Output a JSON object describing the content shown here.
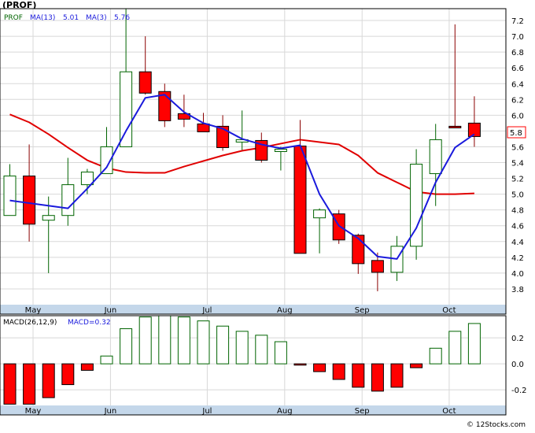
{
  "ticker": "(PROF)",
  "legend": {
    "symbol": "PROF",
    "ma13_label": "MA(13)",
    "ma13_value": "5.01",
    "ma3_label": "MA(3)",
    "ma3_value": "5.76"
  },
  "macd_legend": {
    "params": "MACD(26,12,9)",
    "value_label": "MACD=0.32"
  },
  "price_tag": "5.8",
  "footer": "© 12Stocks.com",
  "colors": {
    "up_candle_fill": "#ffffff",
    "up_candle_stroke": "#006400",
    "down_candle_fill": "#ff0000",
    "down_candle_stroke": "#000000",
    "ma13": "#e00000",
    "ma3": "#1a1adc",
    "macd_pos_stroke": "#006400",
    "macd_neg_fill": "#ff0000",
    "axis_band": "#c4d7ea",
    "grid": "#d8d8d8"
  },
  "chart_data": [
    {
      "type": "candlestick",
      "y_ticks": [
        3.8,
        4.0,
        4.2,
        4.4,
        4.6,
        4.8,
        5.0,
        5.2,
        5.4,
        5.6,
        5.8,
        6.0,
        6.2,
        6.4,
        6.6,
        6.8,
        7.0,
        7.2
      ],
      "ylim": [
        3.6,
        7.35
      ],
      "x_labels": [
        "May",
        "Jun",
        "Jul",
        "Aug",
        "Sep",
        "Oct"
      ],
      "x_label_positions": [
        1.2,
        5.2,
        10.2,
        14.2,
        18.2,
        22.7
      ],
      "candles": [
        {
          "i": 0,
          "open": 4.73,
          "high": 5.38,
          "low": 4.73,
          "close": 5.23
        },
        {
          "i": 1,
          "open": 5.23,
          "high": 5.63,
          "low": 4.4,
          "close": 4.62
        },
        {
          "i": 2,
          "open": 4.67,
          "high": 4.97,
          "low": 4.0,
          "close": 4.73
        },
        {
          "i": 3,
          "open": 4.73,
          "high": 5.46,
          "low": 4.6,
          "close": 5.12
        },
        {
          "i": 4,
          "open": 5.12,
          "high": 5.32,
          "low": 5.0,
          "close": 5.28
        },
        {
          "i": 5,
          "open": 5.26,
          "high": 5.85,
          "low": 5.26,
          "close": 5.6
        },
        {
          "i": 6,
          "open": 5.6,
          "high": 7.35,
          "low": 5.6,
          "close": 6.55
        },
        {
          "i": 7,
          "open": 6.55,
          "high": 7.0,
          "low": 6.26,
          "close": 6.28
        },
        {
          "i": 8,
          "open": 6.3,
          "high": 6.4,
          "low": 5.85,
          "close": 5.93
        },
        {
          "i": 9,
          "open": 6.02,
          "high": 6.26,
          "low": 5.85,
          "close": 5.95
        },
        {
          "i": 10,
          "open": 5.89,
          "high": 6.03,
          "low": 5.8,
          "close": 5.79
        },
        {
          "i": 11,
          "open": 5.86,
          "high": 6.0,
          "low": 5.55,
          "close": 5.59
        },
        {
          "i": 12,
          "open": 5.66,
          "high": 6.06,
          "low": 5.56,
          "close": 5.69
        },
        {
          "i": 13,
          "open": 5.68,
          "high": 5.78,
          "low": 5.4,
          "close": 5.43
        },
        {
          "i": 14,
          "open": 5.54,
          "high": 5.6,
          "low": 5.3,
          "close": 5.57
        },
        {
          "i": 15,
          "open": 5.61,
          "high": 5.94,
          "low": 4.25,
          "close": 4.25
        },
        {
          "i": 16,
          "open": 4.7,
          "high": 4.82,
          "low": 4.25,
          "close": 4.8
        },
        {
          "i": 17,
          "open": 4.75,
          "high": 4.8,
          "low": 4.37,
          "close": 4.42
        },
        {
          "i": 18,
          "open": 4.48,
          "high": 4.5,
          "low": 3.99,
          "close": 4.12
        },
        {
          "i": 19,
          "open": 4.16,
          "high": 4.26,
          "low": 3.77,
          "close": 4.01
        },
        {
          "i": 20,
          "open": 4.01,
          "high": 4.47,
          "low": 3.9,
          "close": 4.34
        },
        {
          "i": 21,
          "open": 4.34,
          "high": 5.57,
          "low": 4.17,
          "close": 5.38
        },
        {
          "i": 22,
          "open": 5.26,
          "high": 5.89,
          "low": 4.85,
          "close": 5.69
        },
        {
          "i": 23,
          "open": 5.86,
          "high": 7.15,
          "low": 5.85,
          "close": 5.84
        },
        {
          "i": 24,
          "open": 5.9,
          "high": 6.24,
          "low": 5.6,
          "close": 5.73
        }
      ],
      "series": [
        {
          "name": "MA(13)",
          "color": "#e00000",
          "x": [
            0,
            1,
            2,
            3,
            4,
            5,
            6,
            7,
            8,
            9,
            10,
            11,
            12,
            13,
            14,
            15,
            16,
            17,
            18,
            19,
            20,
            21,
            22,
            23,
            24
          ],
          "values": [
            6.01,
            5.91,
            5.76,
            5.59,
            5.43,
            5.33,
            5.28,
            5.27,
            5.27,
            5.35,
            5.42,
            5.49,
            5.55,
            5.59,
            5.64,
            5.69,
            5.66,
            5.63,
            5.49,
            5.27,
            5.15,
            5.03,
            5.0,
            5.0,
            5.01
          ]
        },
        {
          "name": "MA(3)",
          "color": "#1a1adc",
          "x": [
            0,
            3,
            4,
            5,
            6,
            7,
            8,
            9,
            10,
            11,
            12,
            13,
            14,
            15,
            16,
            17,
            18,
            19,
            20,
            21,
            22,
            23,
            24
          ],
          "values": [
            4.92,
            4.82,
            5.07,
            5.34,
            5.8,
            6.22,
            6.26,
            6.04,
            5.9,
            5.83,
            5.7,
            5.63,
            5.58,
            5.62,
            5.0,
            4.6,
            4.44,
            4.21,
            4.18,
            4.57,
            5.15,
            5.59,
            5.76
          ]
        }
      ]
    },
    {
      "type": "bar",
      "title": "MACD(26,12,9)",
      "y_ticks": [
        -0.2,
        0.0,
        0.2
      ],
      "y_tick_labels": [
        "-0.2",
        "0.0",
        "0.2"
      ],
      "ylim": [
        -0.32,
        0.37
      ],
      "x_labels": [
        "May",
        "Jun",
        "Jul",
        "Aug",
        "Sep",
        "Oct"
      ],
      "values": [
        -0.31,
        -0.31,
        -0.26,
        -0.16,
        -0.05,
        0.06,
        0.27,
        0.36,
        0.37,
        0.36,
        0.33,
        0.29,
        0.25,
        0.22,
        0.17,
        -0.01,
        -0.06,
        -0.12,
        -0.18,
        -0.21,
        -0.18,
        -0.03,
        0.12,
        0.25,
        0.31
      ]
    }
  ]
}
